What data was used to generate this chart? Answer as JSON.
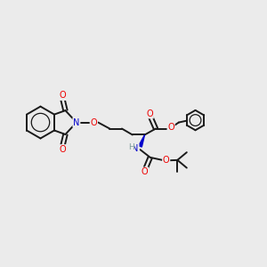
{
  "bg_color": "#ebebeb",
  "line_color": "#1a1a1a",
  "bond_width": 1.4,
  "atom_colors": {
    "O": "#ee0000",
    "N": "#0000cc",
    "C": "#1a1a1a",
    "H": "#7a9a9a"
  },
  "figsize": [
    3.0,
    3.0
  ],
  "dpi": 100,
  "xlim": [
    0,
    12
  ],
  "ylim": [
    0,
    10
  ]
}
